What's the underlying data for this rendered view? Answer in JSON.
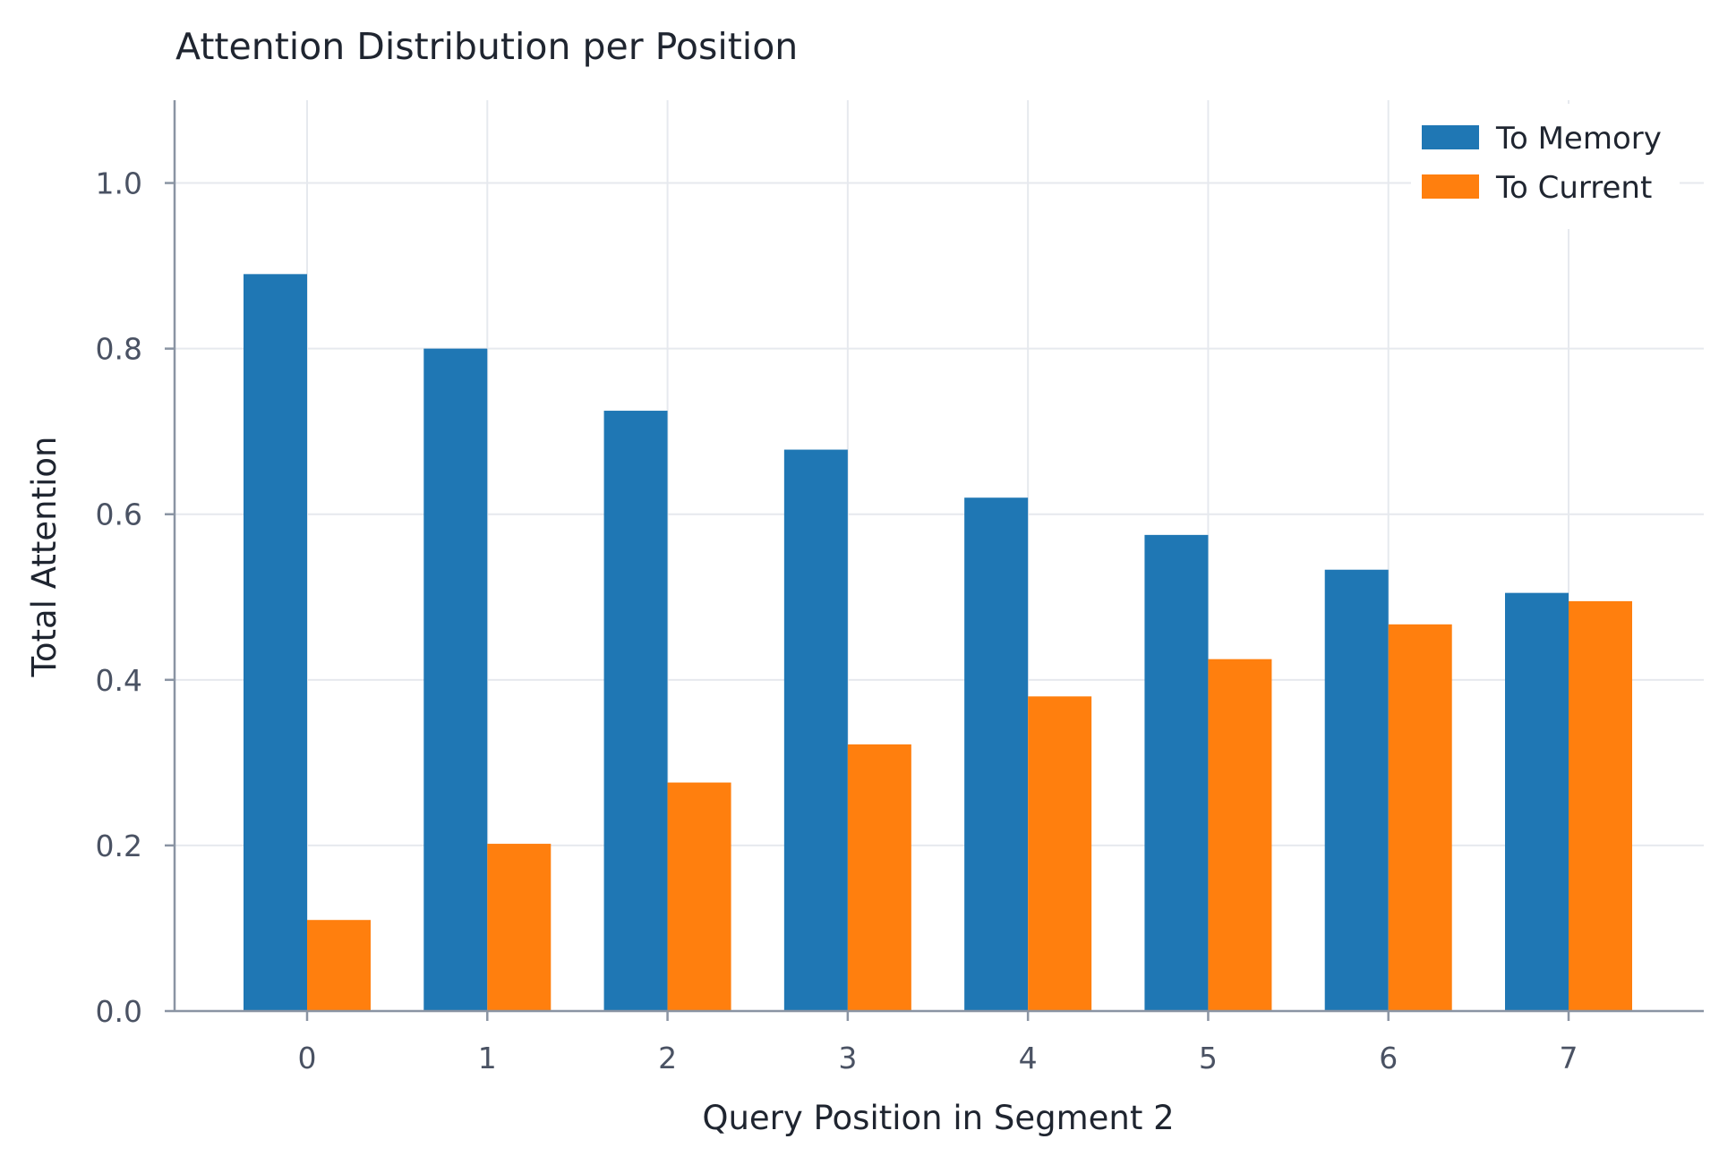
{
  "chart_data": {
    "type": "bar",
    "title": "Attention Distribution per Position",
    "xlabel": "Query Position in Segment 2",
    "ylabel": "Total Attention",
    "categories": [
      "0",
      "1",
      "2",
      "3",
      "4",
      "5",
      "6",
      "7"
    ],
    "series": [
      {
        "name": "To Memory",
        "color": "#1f77b4",
        "values": [
          0.89,
          0.8,
          0.725,
          0.678,
          0.62,
          0.575,
          0.533,
          0.505
        ]
      },
      {
        "name": "To Current",
        "color": "#ff7f0e",
        "values": [
          0.11,
          0.202,
          0.276,
          0.322,
          0.38,
          0.425,
          0.467,
          0.495
        ]
      }
    ],
    "yticks": [
      "0.0",
      "0.2",
      "0.4",
      "0.6",
      "0.8",
      "1.0"
    ],
    "ylim": [
      0,
      1.1
    ],
    "grid": true,
    "legend_position": "top-right"
  }
}
